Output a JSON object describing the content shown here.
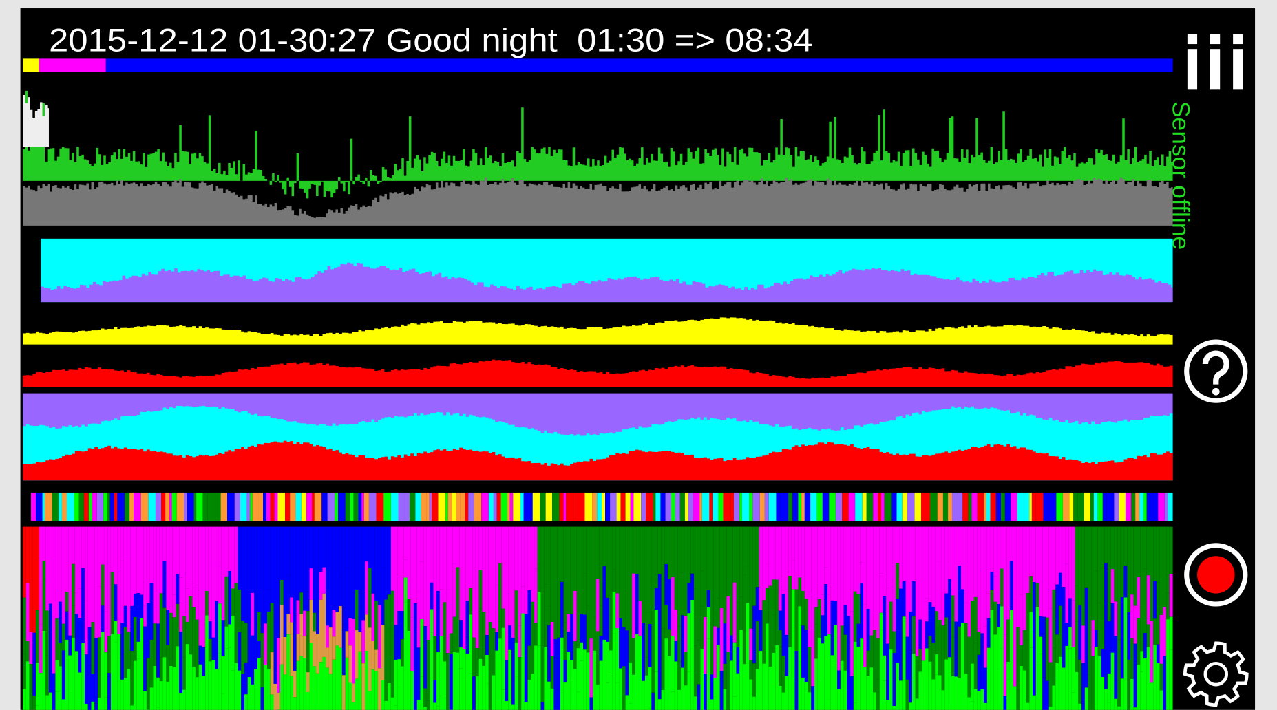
{
  "header": {
    "title": "2015-12-12 01-30:27 Good night  01:30 => 08:34"
  },
  "status": {
    "sensor": "Sensor offline"
  }
}
